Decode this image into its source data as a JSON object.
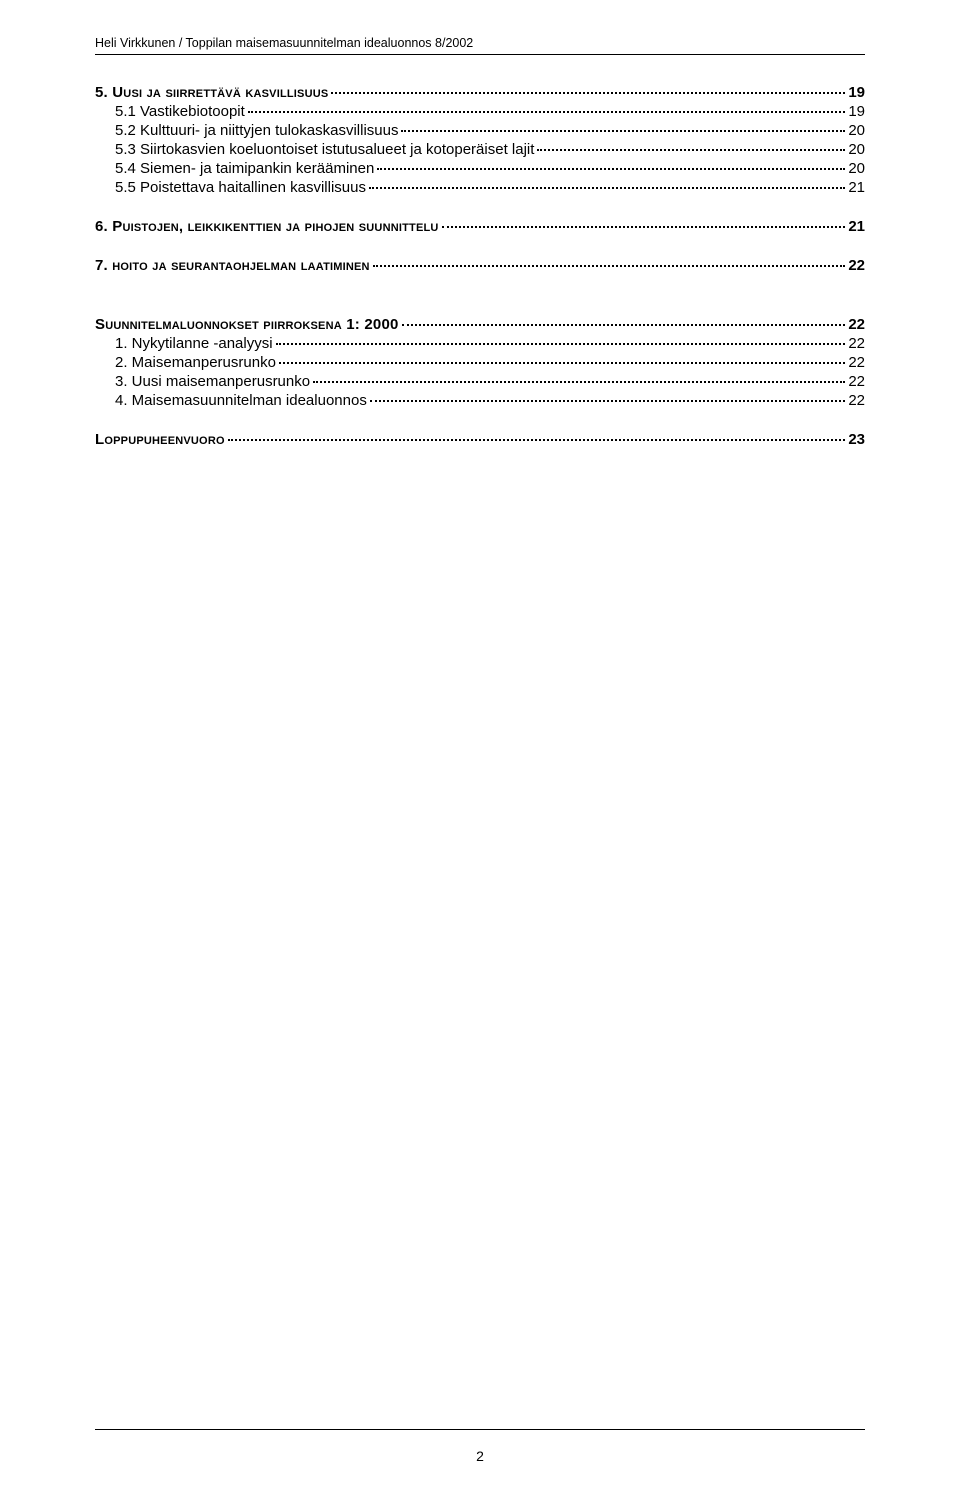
{
  "header": "Heli Virkkunen / Toppilan maisemasuunnitelman idealuonnos 8/2002",
  "toc": [
    {
      "level": 0,
      "bold": true,
      "gap": "",
      "label": "5. Uusi ja siirrettävä kasvillisuus",
      "smallcaps": true,
      "page": "19"
    },
    {
      "level": 1,
      "bold": false,
      "gap": "",
      "label": "5.1 Vastikebiotoopit",
      "smallcaps": false,
      "page": "19"
    },
    {
      "level": 1,
      "bold": false,
      "gap": "",
      "label": "5.2 Kulttuuri- ja niittyjen tulokaskasvillisuus",
      "smallcaps": false,
      "page": "20"
    },
    {
      "level": 1,
      "bold": false,
      "gap": "",
      "label": "5.3 Siirtokasvien  koeluontoiset istutusalueet  ja kotoperäiset lajit",
      "smallcaps": false,
      "page": "20"
    },
    {
      "level": 1,
      "bold": false,
      "gap": "",
      "label": "5.4 Siemen- ja taimipankin kerääminen",
      "smallcaps": false,
      "page": "20"
    },
    {
      "level": 1,
      "bold": false,
      "gap": "",
      "label": "5.5 Poistettava haitallinen kasvillisuus",
      "smallcaps": false,
      "page": "21"
    },
    {
      "level": 0,
      "bold": true,
      "gap": "md",
      "label": "6. Puistojen, leikkikenttien ja pihojen suunnittelu",
      "smallcaps": true,
      "page": "21"
    },
    {
      "level": 0,
      "bold": true,
      "gap": "md",
      "label": "7. hoito ja seurantaohjelman laatiminen",
      "smallcaps": true,
      "page": "22"
    },
    {
      "level": 0,
      "bold": true,
      "gap": "lg",
      "label": "Suunnitelmaluonnokset piirroksena 1: 2000",
      "smallcaps": true,
      "page": "22"
    },
    {
      "level": 1,
      "bold": false,
      "gap": "",
      "label": "1. Nykytilanne -analyysi",
      "smallcaps": false,
      "page": "22"
    },
    {
      "level": 1,
      "bold": false,
      "gap": "",
      "label": "2. Maisemanperusrunko",
      "smallcaps": false,
      "page": "22"
    },
    {
      "level": 1,
      "bold": false,
      "gap": "",
      "label": "3. Uusi maisemanperusrunko",
      "smallcaps": false,
      "page": "22"
    },
    {
      "level": 1,
      "bold": false,
      "gap": "",
      "label": "4. Maisemasuunnitelman idealuonnos",
      "smallcaps": false,
      "page": "22"
    },
    {
      "level": 0,
      "bold": true,
      "gap": "md",
      "label": "Loppupuheenvuoro",
      "smallcaps": true,
      "page": "23"
    }
  ],
  "footer_page": "2"
}
